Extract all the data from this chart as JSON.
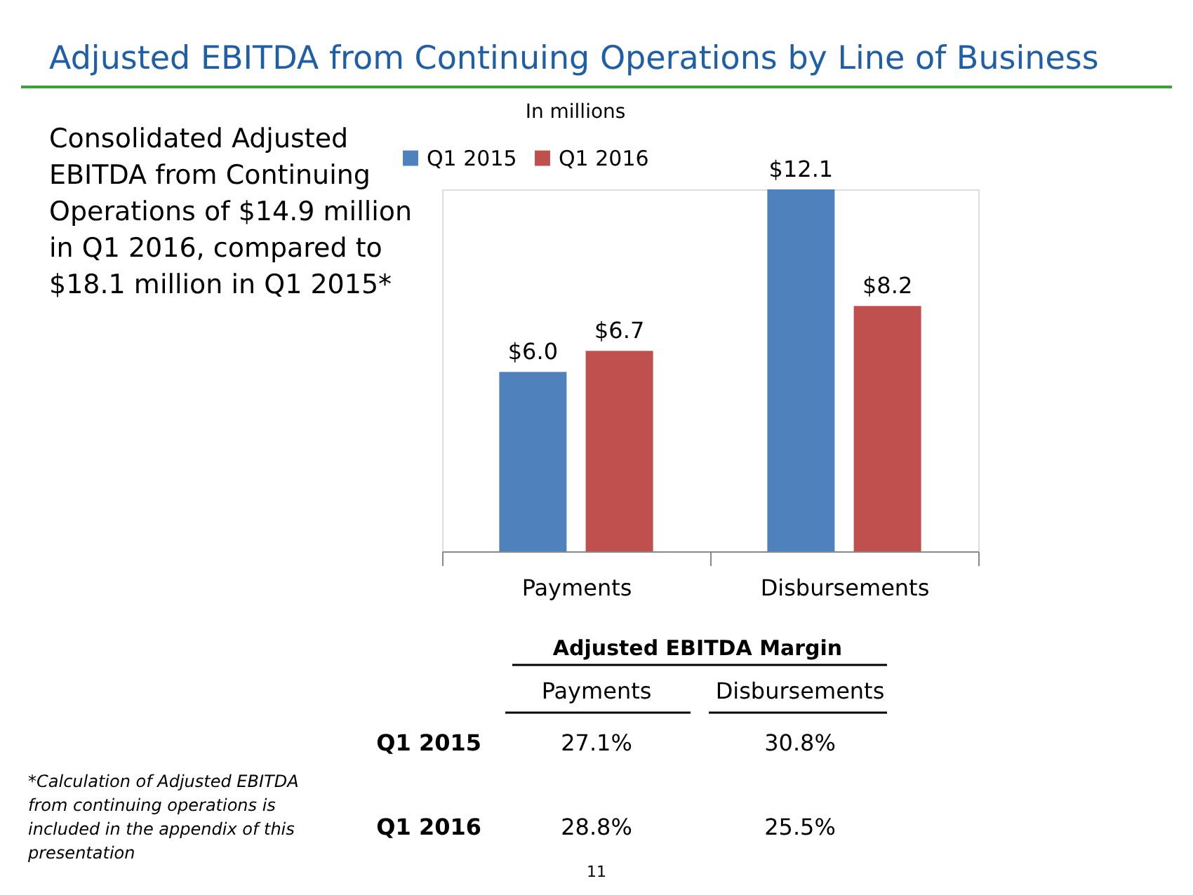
{
  "chart_data": {
    "type": "bar",
    "title": "Adjusted EBITDA from Continuing Operations by Line of Business",
    "subtitle": "In millions",
    "categories": [
      "Payments",
      "Disbursements"
    ],
    "series": [
      {
        "name": "Q1 2015",
        "color": "#4f81bd",
        "values": [
          6.0,
          12.1
        ],
        "value_labels": [
          "$6.0",
          "$12.1"
        ]
      },
      {
        "name": "Q1 2016",
        "color": "#c0504d",
        "values": [
          6.7,
          8.2
        ],
        "value_labels": [
          "$6.7",
          "$8.2"
        ]
      }
    ],
    "legend": "top left",
    "grid": false,
    "tick_labels": "x",
    "annotations": [
      "Consolidated Adjusted\nEBITDA from Continuing\nOperations of $14.9 million\nin Q1 2016, compared to\n$18.1 million in Q1 2015*",
      "*Calculation of Adjusted EBITDA\nfrom continuing operations is\nincluded in the appendix of this\npresentation",
      "Adjusted EBITDA Margin",
      "Payments",
      "Disbursements",
      "Q1 2015",
      "27.1%",
      "30.8%",
      "Q1 2016",
      "28.8%",
      "25.5%",
      "11"
    ]
  }
}
